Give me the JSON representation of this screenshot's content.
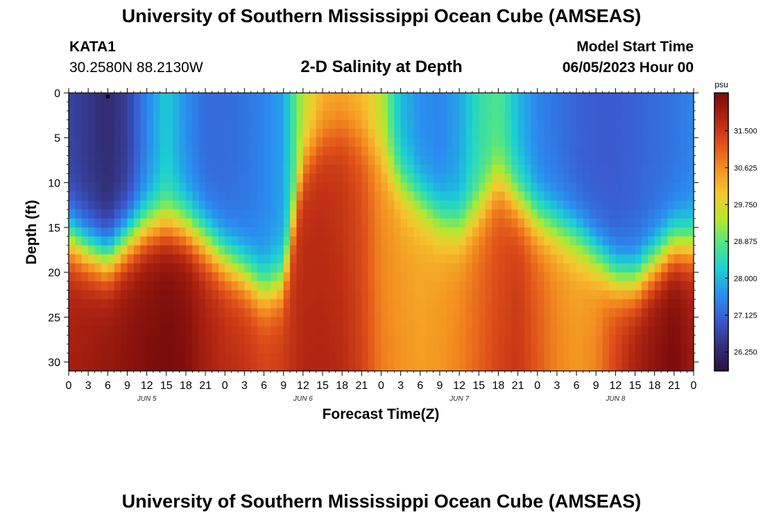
{
  "header": {
    "title": "University of Southern Mississippi Ocean Cube (AMSEAS)",
    "station": "KATA1",
    "coords": "30.2580N  88.2130W",
    "subtitle": "2-D Salinity at Depth",
    "model_start_label": "Model Start Time",
    "model_start_date": "06/05/2023 Hour 00"
  },
  "footer": {
    "title": "University of Southern Mississippi Ocean Cube (AMSEAS)"
  },
  "colors": {
    "colormap": [
      "#2a1040",
      "#33307a",
      "#3a5ad0",
      "#2a8ef0",
      "#1bcfd4",
      "#4ee58a",
      "#b4e82e",
      "#f5c830",
      "#f49020",
      "#e0501a",
      "#b02412",
      "#7a0c0a"
    ]
  },
  "chart_data": {
    "type": "heatmap",
    "title": "2-D Salinity at Depth",
    "xlabel": "Forecast Time(Z)",
    "ylabel": "Depth (ft)",
    "x_range": [
      0,
      96
    ],
    "y_range": [
      0,
      31
    ],
    "x_tick_values": [
      0,
      3,
      6,
      9,
      12,
      15,
      18,
      21,
      24,
      27,
      30,
      33,
      36,
      39,
      42,
      45,
      48,
      51,
      54,
      57,
      60,
      63,
      66,
      69,
      72,
      75,
      78,
      81,
      84,
      87,
      90,
      93,
      96
    ],
    "x_tick_labels": [
      "0",
      "3",
      "6",
      "9",
      "12",
      "15",
      "18",
      "21",
      "0",
      "3",
      "6",
      "9",
      "12",
      "15",
      "18",
      "21",
      "0",
      "3",
      "6",
      "9",
      "12",
      "15",
      "18",
      "21",
      "0",
      "3",
      "6",
      "9",
      "12",
      "15",
      "18",
      "21",
      "0"
    ],
    "day_labels": [
      {
        "x": 12,
        "label": "JUN 5"
      },
      {
        "x": 36,
        "label": "JUN 6"
      },
      {
        "x": 60,
        "label": "JUN 7"
      },
      {
        "x": 84,
        "label": "JUN 8"
      }
    ],
    "y_tick_values": [
      0,
      5,
      10,
      15,
      20,
      25,
      30
    ],
    "y_tick_labels": [
      "0",
      "5",
      "10",
      "15",
      "20",
      "25",
      "30"
    ],
    "colorbar": {
      "unit": "psu",
      "min": 25.8,
      "max": 32.4,
      "ticks": [
        31.5,
        30.625,
        29.75,
        28.875,
        28.0,
        27.125,
        26.25
      ],
      "tick_labels": [
        "31.500",
        "30.625",
        "29.750",
        "28.875",
        "28.000",
        "27.125",
        "26.250"
      ]
    },
    "surface": {
      "min": 26.3,
      "max": 30.3
    },
    "bottom": {
      "min": 30.2,
      "max": 32.3
    },
    "halocline_depth": {
      "times": [
        0,
        3,
        6,
        9,
        12,
        15,
        18,
        21,
        24,
        27,
        30,
        33,
        36,
        39,
        42,
        45,
        48,
        51,
        54,
        57,
        60,
        63,
        66,
        69,
        72,
        75,
        78,
        81,
        84,
        87,
        90,
        93,
        96
      ],
      "depth_ft": [
        16,
        17.5,
        18.5,
        16.5,
        15,
        14.5,
        15,
        16.5,
        18.5,
        20,
        22,
        21,
        8,
        5,
        4,
        5,
        7,
        10,
        12,
        14,
        15,
        13,
        10,
        12,
        14,
        15,
        16,
        18,
        20.5,
        21,
        19,
        17,
        17
      ]
    },
    "surface_salinity": {
      "times": [
        0,
        3,
        6,
        9,
        12,
        15,
        18,
        21,
        24,
        27,
        30,
        33,
        36,
        39,
        42,
        45,
        48,
        51,
        54,
        57,
        60,
        63,
        66,
        69,
        72,
        75,
        78,
        81,
        84,
        87,
        90,
        93,
        96
      ],
      "psu": [
        26.7,
        26.5,
        26.3,
        26.6,
        27.5,
        28.2,
        27.6,
        27.2,
        27.2,
        27.3,
        27.5,
        27.8,
        29.5,
        30.2,
        30.3,
        30.1,
        29.5,
        28.0,
        27.6,
        27.5,
        27.8,
        28.5,
        28.8,
        28.0,
        27.5,
        27.3,
        27.1,
        27.0,
        27.0,
        27.1,
        27.2,
        27.3,
        27.5
      ]
    },
    "bottom_salinity": {
      "times": [
        0,
        3,
        6,
        9,
        12,
        15,
        18,
        21,
        24,
        27,
        30,
        33,
        36,
        39,
        42,
        45,
        48,
        51,
        54,
        57,
        60,
        63,
        66,
        69,
        72,
        75,
        78,
        81,
        84,
        87,
        90,
        93,
        96
      ],
      "psu": [
        31.8,
        31.9,
        32.0,
        32.1,
        32.2,
        32.3,
        32.2,
        31.8,
        31.6,
        31.5,
        31.3,
        31.4,
        31.6,
        31.6,
        31.5,
        31.2,
        30.6,
        30.4,
        30.3,
        30.4,
        30.6,
        30.9,
        31.2,
        31.4,
        31.0,
        30.6,
        30.4,
        30.6,
        31.3,
        31.8,
        32.1,
        32.3,
        31.9
      ]
    },
    "marker": {
      "x": 6,
      "y": 0.3
    }
  }
}
